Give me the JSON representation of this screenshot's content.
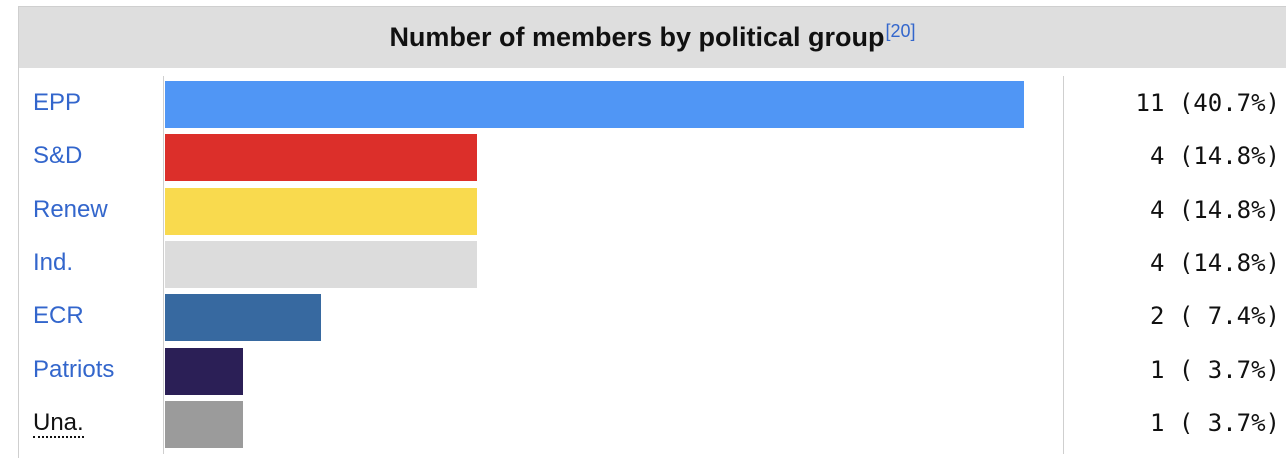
{
  "header": {
    "title": "Number of members by political group",
    "reference": "[20]"
  },
  "chart_data": {
    "type": "bar",
    "orientation": "horizontal",
    "title": "Number of members by political group",
    "categories": [
      "EPP",
      "S&D",
      "Renew",
      "Ind.",
      "ECR",
      "Patriots",
      "Una."
    ],
    "values": [
      11,
      4,
      4,
      4,
      2,
      1,
      1
    ],
    "value_labels": [
      "11 (40.7%)",
      "4 (14.8%)",
      "4 (14.8%)",
      "4 (14.8%)",
      "2 ( 7.4%)",
      "1 ( 3.7%)",
      "1 ( 3.7%)"
    ],
    "colors": [
      "#5096f5",
      "#dc2f2a",
      "#f9da4e",
      "#dcdcdc",
      "#3769a0",
      "#2b1f56",
      "#9b9b9b"
    ],
    "xlim": [
      0,
      11
    ],
    "grid": false,
    "legend": "none"
  }
}
